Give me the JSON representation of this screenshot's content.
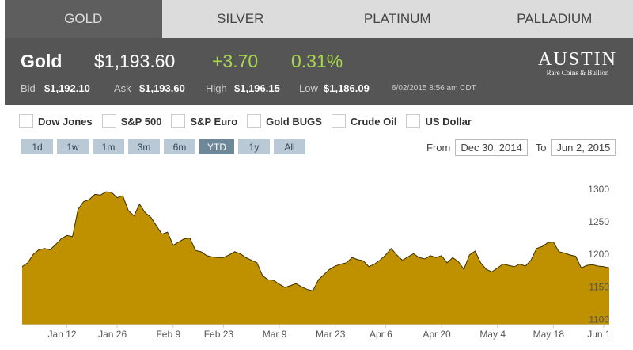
{
  "tabs": [
    "GOLD",
    "SILVER",
    "PLATINUM",
    "PALLADIUM"
  ],
  "quote": {
    "name": "Gold",
    "price": "$1,193.60",
    "change": "+3.70",
    "change_pct": "0.31%",
    "bid_label": "Bid",
    "bid": "$1,192.10",
    "ask_label": "Ask",
    "ask": "$1,193.60",
    "high_label": "High",
    "high": "$1,196.15",
    "low_label": "Low",
    "low": "$1,186.09",
    "timestamp": "6/02/2015 8:56 am CDT"
  },
  "logo": {
    "name": "AUSTIN",
    "tagline": "Rare Coins & Bullion"
  },
  "overlays": [
    "Dow Jones",
    "S&P 500",
    "S&P Euro",
    "Gold BUGS",
    "Crude Oil",
    "US Dollar"
  ],
  "ranges": [
    "1d",
    "1w",
    "1m",
    "3m",
    "6m",
    "YTD",
    "1y",
    "All"
  ],
  "date_range": {
    "from_label": "From",
    "from": "Dec 30, 2014",
    "to_label": "To",
    "to": "Jun 2, 2015"
  },
  "chart_data": {
    "type": "area",
    "color": "#bf9000",
    "categories": [
      null,
      null,
      null,
      null,
      null,
      null,
      null,
      null,
      "Jan 12",
      null,
      null,
      null,
      null,
      null,
      null,
      null,
      null,
      "Jan 26",
      null,
      null,
      null,
      null,
      null,
      null,
      null,
      null,
      null,
      "Feb 9",
      null,
      null,
      null,
      null,
      null,
      null,
      null,
      null,
      "Feb 23",
      null,
      null,
      null,
      null,
      null,
      null,
      null,
      null,
      null,
      "Mar 9",
      null,
      null,
      null,
      null,
      null,
      null,
      null,
      null,
      null,
      "Mar 23",
      null,
      null,
      null,
      null,
      null,
      null,
      null,
      null,
      "Apr 6",
      null,
      null,
      null,
      null,
      null,
      null,
      null,
      null,
      null,
      "Apr 20",
      null,
      null,
      null,
      null,
      null,
      null,
      null,
      null,
      null,
      "May 4",
      null,
      null,
      null,
      null,
      null,
      null,
      null,
      null,
      null,
      "May 18",
      null,
      null,
      null,
      null,
      null,
      null,
      null,
      null,
      "Jun 1",
      null
    ],
    "values": [
      1182,
      1188,
      1201,
      1208,
      1210,
      1208,
      1216,
      1225,
      1230,
      1228,
      1270,
      1282,
      1285,
      1293,
      1292,
      1297,
      1296,
      1288,
      1291,
      1268,
      1260,
      1278,
      1265,
      1258,
      1245,
      1232,
      1235,
      1215,
      1220,
      1225,
      1226,
      1207,
      1205,
      1199,
      1197,
      1196,
      1196,
      1200,
      1205,
      1202,
      1196,
      1192,
      1188,
      1168,
      1162,
      1161,
      1155,
      1150,
      1153,
      1156,
      1151,
      1147,
      1145,
      1162,
      1170,
      1178,
      1183,
      1186,
      1188,
      1196,
      1193,
      1191,
      1182,
      1186,
      1192,
      1200,
      1210,
      1200,
      1192,
      1197,
      1202,
      1196,
      1194,
      1199,
      1196,
      1199,
      1188,
      1196,
      1190,
      1178,
      1200,
      1206,
      1188,
      1178,
      1174,
      1180,
      1186,
      1184,
      1182,
      1186,
      1183,
      1192,
      1210,
      1213,
      1219,
      1220,
      1205,
      1203,
      1200,
      1198,
      1180,
      1184,
      1185,
      1183,
      1182,
      1180
    ],
    "ylim": [
      1093,
      1330
    ],
    "yticks": [
      1100,
      1150,
      1200,
      1250,
      1300
    ]
  }
}
